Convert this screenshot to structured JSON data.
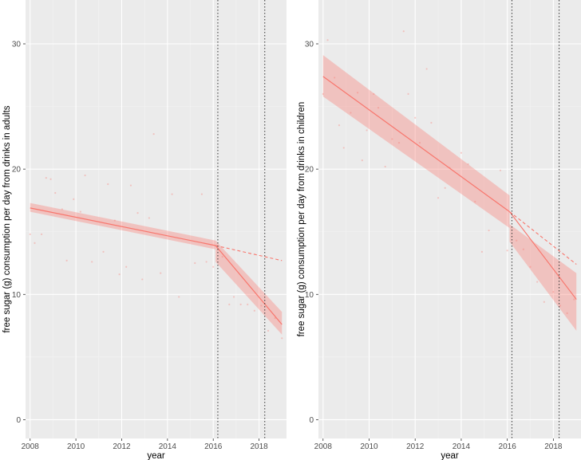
{
  "colors": {
    "panel_background": "#ebebeb",
    "grid_major": "#ffffff",
    "grid_minor": "#f4f4f4",
    "series": "#f8766d",
    "ribbon": "#f8766d",
    "vline": "#333333"
  },
  "chart_data": [
    {
      "type": "scatter",
      "title": "",
      "xlabel": "year",
      "ylabel": "free sugar (g) consumption per day from drinks in adults",
      "xlim": [
        2007.8,
        2019.2
      ],
      "ylim": [
        -1.5,
        33.5
      ],
      "xticks": [
        2008,
        2010,
        2012,
        2014,
        2016,
        2018
      ],
      "yticks": [
        0,
        10,
        20,
        30
      ],
      "grid": true,
      "interruptions": [
        2016.2,
        2018.25
      ],
      "points": [
        {
          "x": 2008.0,
          "y": 14.8
        },
        {
          "x": 2008.2,
          "y": 14.1
        },
        {
          "x": 2008.5,
          "y": 14.8
        },
        {
          "x": 2008.7,
          "y": 19.3
        },
        {
          "x": 2008.9,
          "y": 19.2
        },
        {
          "x": 2009.1,
          "y": 18.1
        },
        {
          "x": 2009.4,
          "y": 16.8
        },
        {
          "x": 2009.6,
          "y": 12.7
        },
        {
          "x": 2009.9,
          "y": 17.6
        },
        {
          "x": 2010.2,
          "y": 16.6
        },
        {
          "x": 2010.4,
          "y": 19.5
        },
        {
          "x": 2010.7,
          "y": 12.6
        },
        {
          "x": 2011.2,
          "y": 13.4
        },
        {
          "x": 2011.4,
          "y": 18.8
        },
        {
          "x": 2011.7,
          "y": 15.9
        },
        {
          "x": 2011.9,
          "y": 11.6
        },
        {
          "x": 2012.2,
          "y": 12.2
        },
        {
          "x": 2012.4,
          "y": 18.7
        },
        {
          "x": 2012.7,
          "y": 16.5
        },
        {
          "x": 2012.9,
          "y": 11.2
        },
        {
          "x": 2013.2,
          "y": 16.1
        },
        {
          "x": 2013.4,
          "y": 22.8
        },
        {
          "x": 2013.7,
          "y": 11.7
        },
        {
          "x": 2014.2,
          "y": 18.0
        },
        {
          "x": 2014.5,
          "y": 9.8
        },
        {
          "x": 2015.2,
          "y": 12.5
        },
        {
          "x": 2015.5,
          "y": 18.0
        },
        {
          "x": 2015.7,
          "y": 12.6
        },
        {
          "x": 2016.0,
          "y": 12.2
        },
        {
          "x": 2016.4,
          "y": 13.0
        },
        {
          "x": 2016.7,
          "y": 9.2
        },
        {
          "x": 2016.9,
          "y": 9.8
        },
        {
          "x": 2017.2,
          "y": 9.2
        },
        {
          "x": 2017.5,
          "y": 9.2
        },
        {
          "x": 2017.8,
          "y": 8.7
        },
        {
          "x": 2018.1,
          "y": 9.1
        },
        {
          "x": 2018.4,
          "y": 7.1
        },
        {
          "x": 2018.7,
          "y": 8.1
        },
        {
          "x": 2019.0,
          "y": 6.5
        }
      ],
      "fit_segments": [
        {
          "x": [
            2008.0,
            2016.1
          ],
          "y": [
            16.9,
            13.9
          ],
          "lower": [
            16.6,
            13.6
          ],
          "upper": [
            17.3,
            14.3
          ]
        },
        {
          "x": [
            2016.1,
            2019.0
          ],
          "y": [
            13.9,
            7.6
          ],
          "lower": [
            12.6,
            6.8
          ],
          "upper": [
            14.3,
            8.6
          ]
        }
      ],
      "counterfactual": {
        "x": [
          2016.1,
          2019.0
        ],
        "y": [
          13.9,
          12.7
        ]
      }
    },
    {
      "type": "scatter",
      "title": "",
      "xlabel": "year",
      "ylabel": "free sugar (g) consumption per day from drinks in children",
      "xlim": [
        2007.8,
        2019.2
      ],
      "ylim": [
        -1.5,
        33.5
      ],
      "xticks": [
        2008,
        2010,
        2012,
        2014,
        2016,
        2018
      ],
      "yticks": [
        0,
        10,
        20,
        30
      ],
      "grid": true,
      "interruptions": [
        2016.2,
        2018.25
      ],
      "points": [
        {
          "x": 2008.0,
          "y": 26.0
        },
        {
          "x": 2008.2,
          "y": 30.3
        },
        {
          "x": 2008.5,
          "y": 27.3
        },
        {
          "x": 2008.7,
          "y": 23.5
        },
        {
          "x": 2008.9,
          "y": 21.7
        },
        {
          "x": 2009.2,
          "y": 24.5
        },
        {
          "x": 2009.5,
          "y": 26.1
        },
        {
          "x": 2009.7,
          "y": 20.7
        },
        {
          "x": 2009.9,
          "y": 23.1
        },
        {
          "x": 2010.2,
          "y": 26.0
        },
        {
          "x": 2010.4,
          "y": 24.9
        },
        {
          "x": 2010.7,
          "y": 20.2
        },
        {
          "x": 2011.0,
          "y": 22.4
        },
        {
          "x": 2011.3,
          "y": 22.1
        },
        {
          "x": 2011.5,
          "y": 31.0
        },
        {
          "x": 2011.7,
          "y": 26.0
        },
        {
          "x": 2012.0,
          "y": 24.1
        },
        {
          "x": 2012.2,
          "y": 22.1
        },
        {
          "x": 2012.5,
          "y": 28.0
        },
        {
          "x": 2012.7,
          "y": 23.7
        },
        {
          "x": 2013.0,
          "y": 17.7
        },
        {
          "x": 2013.3,
          "y": 18.5
        },
        {
          "x": 2013.5,
          "y": 20.1
        },
        {
          "x": 2014.0,
          "y": 21.3
        },
        {
          "x": 2014.3,
          "y": 20.4
        },
        {
          "x": 2014.6,
          "y": 17.4
        },
        {
          "x": 2014.9,
          "y": 13.4
        },
        {
          "x": 2015.2,
          "y": 15.1
        },
        {
          "x": 2015.7,
          "y": 19.9
        },
        {
          "x": 2016.0,
          "y": 13.5
        },
        {
          "x": 2016.4,
          "y": 14.3
        },
        {
          "x": 2016.7,
          "y": 13.6
        },
        {
          "x": 2017.0,
          "y": 12.2
        },
        {
          "x": 2017.3,
          "y": 11.0
        },
        {
          "x": 2017.6,
          "y": 9.4
        },
        {
          "x": 2018.0,
          "y": 10.2
        },
        {
          "x": 2018.3,
          "y": 9.1
        },
        {
          "x": 2018.6,
          "y": 8.5
        },
        {
          "x": 2018.9,
          "y": 9.6
        }
      ],
      "fit_segments": [
        {
          "x": [
            2008.0,
            2016.1
          ],
          "y": [
            27.4,
            16.6
          ],
          "lower": [
            25.8,
            15.3
          ],
          "upper": [
            29.1,
            17.9
          ]
        },
        {
          "x": [
            2016.1,
            2019.0
          ],
          "y": [
            16.6,
            9.6
          ],
          "lower": [
            14.2,
            7.1
          ],
          "upper": [
            15.6,
            11.7
          ]
        }
      ],
      "counterfactual": {
        "x": [
          2016.1,
          2019.0
        ],
        "y": [
          16.6,
          12.4
        ]
      }
    }
  ]
}
